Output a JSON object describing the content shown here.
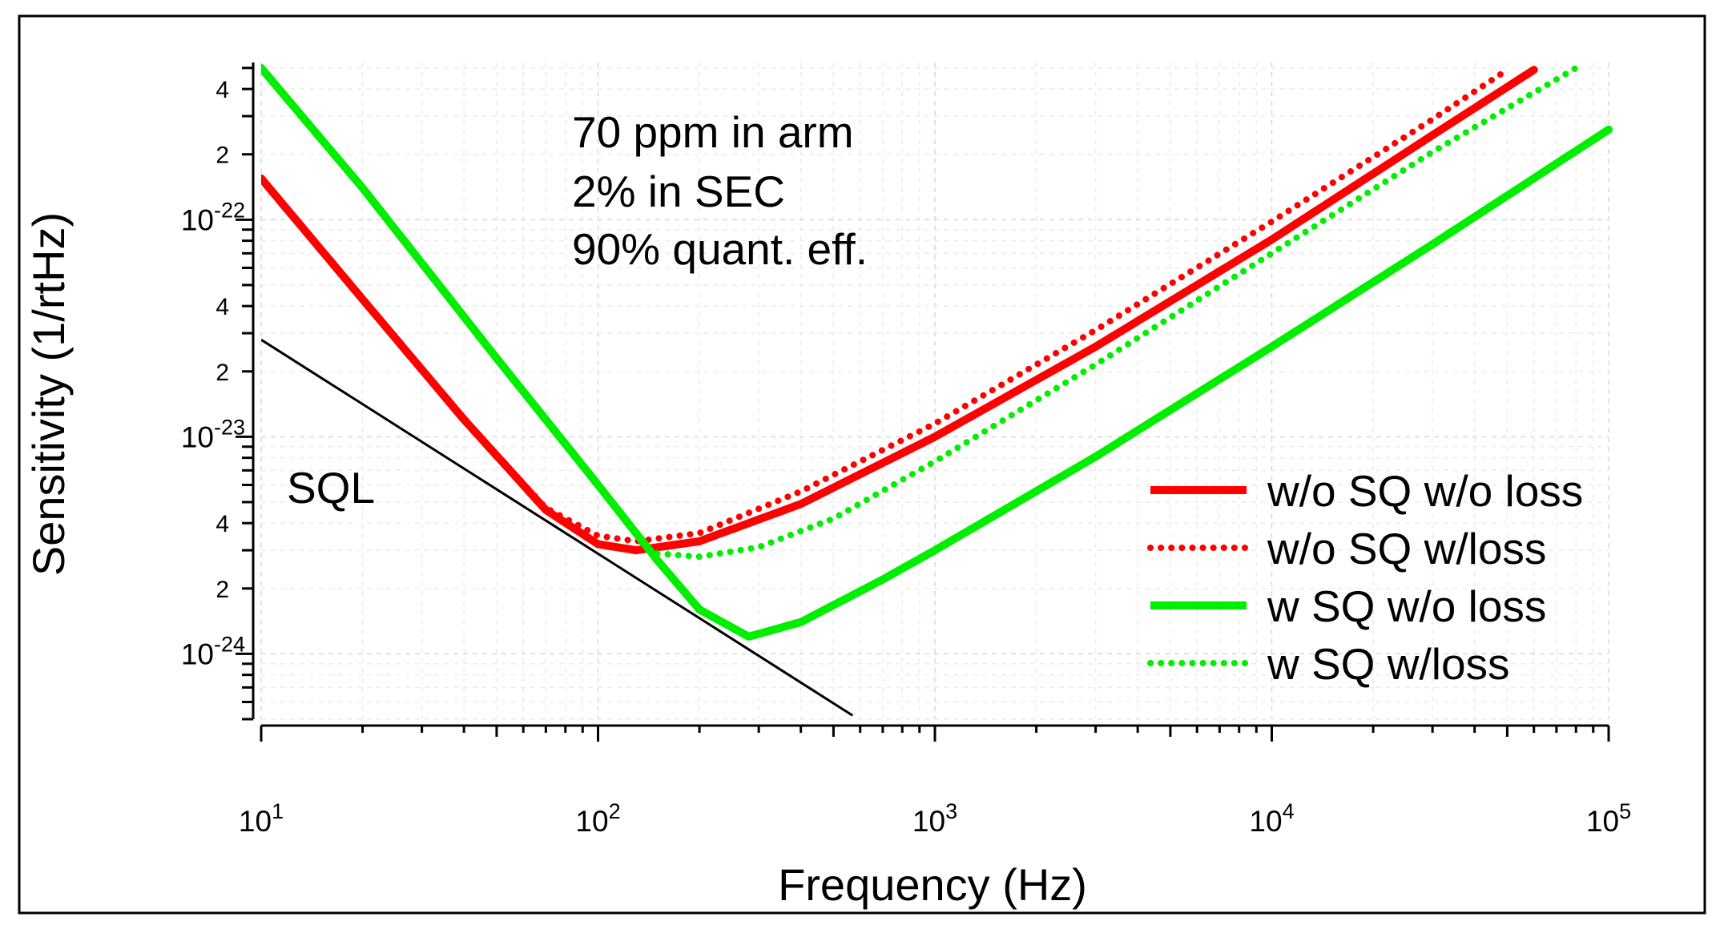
{
  "chart_data": {
    "type": "line",
    "xscale": "log",
    "yscale": "log",
    "xlim": [
      10,
      100000
    ],
    "ylim": [
      5e-25,
      5.3e-22
    ],
    "grid": true,
    "legend_position": "right",
    "xlabel": "Frequency (Hz)",
    "ylabel": "Sensitivity (1/rtHz)",
    "x_ticks": [
      {
        "value": 10,
        "base": "10",
        "exp": "1"
      },
      {
        "value": 100,
        "base": "10",
        "exp": "2"
      },
      {
        "value": 1000,
        "base": "10",
        "exp": "3"
      },
      {
        "value": 10000,
        "base": "10",
        "exp": "4"
      },
      {
        "value": 100000,
        "base": "10",
        "exp": "5"
      }
    ],
    "y_ticks": [
      {
        "value": 1e-24,
        "base": "10",
        "exp": "-24"
      },
      {
        "value": 1e-23,
        "base": "10",
        "exp": "-23"
      },
      {
        "value": 1e-22,
        "base": "10",
        "exp": "-22"
      }
    ],
    "y_minor_labels": [
      {
        "value": 2e-24,
        "label": "2"
      },
      {
        "value": 4e-24,
        "label": "4"
      },
      {
        "value": 2e-23,
        "label": "2"
      },
      {
        "value": 4e-23,
        "label": "4"
      },
      {
        "value": 2e-22,
        "label": "2"
      },
      {
        "value": 4e-22,
        "label": "4"
      }
    ],
    "annotations": [
      "70 ppm in arm",
      "2% in SEC",
      "90% quant. eff."
    ],
    "sql_label": "SQL",
    "series": [
      {
        "name": "w/o SQ w/o loss",
        "color": "#ff0000",
        "style": "solid",
        "x": [
          10,
          20,
          40,
          70,
          100,
          130,
          200,
          400,
          1000,
          3000,
          10000,
          30000,
          60000
        ],
        "y": [
          1.55e-22,
          4.3e-23,
          1.2e-23,
          4.6e-24,
          3.2e-24,
          3e-24,
          3.3e-24,
          4.9e-24,
          1e-23,
          2.6e-23,
          8.1e-23,
          2.45e-22,
          4.9e-22
        ]
      },
      {
        "name": "w/o SQ w/loss",
        "color": "#ff0000",
        "style": "dotted",
        "x": [
          10,
          20,
          40,
          70,
          100,
          130,
          200,
          400,
          1000,
          3000,
          10000,
          30000,
          50000
        ],
        "y": [
          1.55e-22,
          4.3e-23,
          1.2e-23,
          4.7e-24,
          3.5e-24,
          3.3e-24,
          3.6e-24,
          5.6e-24,
          1.15e-23,
          3.1e-23,
          9.8e-23,
          2.9e-22,
          4.9e-22
        ]
      },
      {
        "name": "w SQ w/o loss",
        "color": "#00ee00",
        "style": "solid",
        "x": [
          10,
          20,
          50,
          100,
          150,
          200,
          280,
          400,
          700,
          1000,
          3000,
          10000,
          30000,
          100000
        ],
        "y": [
          5e-22,
          1.4e-22,
          2.3e-23,
          6e-24,
          2.7e-24,
          1.6e-24,
          1.2e-24,
          1.4e-24,
          2.2e-24,
          3e-24,
          8.1e-24,
          2.6e-23,
          7.7e-23,
          2.6e-22
        ]
      },
      {
        "name": "w SQ w/loss",
        "color": "#00ee00",
        "style": "dotted",
        "x": [
          150,
          200,
          300,
          500,
          1000,
          3000,
          10000,
          30000,
          80000
        ],
        "y": [
          2.9e-24,
          2.8e-24,
          3.1e-24,
          4.2e-24,
          7.7e-24,
          2.15e-23,
          7e-23,
          2.05e-22,
          5e-22
        ]
      },
      {
        "name": "",
        "color": "#000000",
        "style": "solid-thin",
        "x": [
          10,
          570
        ],
        "y": [
          2.8e-23,
          5.2e-25
        ]
      }
    ]
  }
}
